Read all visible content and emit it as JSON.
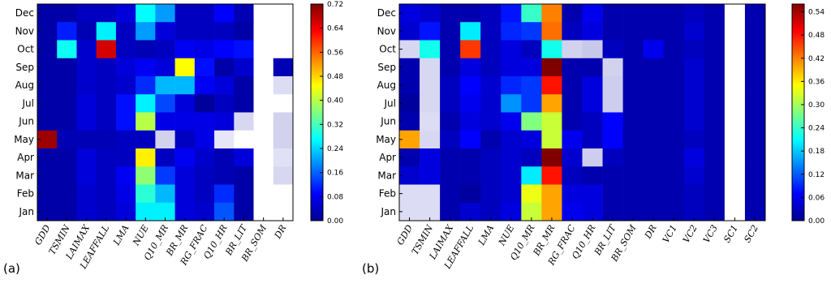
{
  "colormap": [
    "#00008f",
    "#0000ff",
    "#0080ff",
    "#00ffff",
    "#80ff80",
    "#ffff00",
    "#ff8000",
    "#ff0000",
    "#800000"
  ],
  "chart_data": [
    {
      "type": "heatmap",
      "panel_label": "(a)",
      "rows": [
        "Dec",
        "Nov",
        "Oct",
        "Sep",
        "Aug",
        "Jul",
        "Jun",
        "May",
        "Apr",
        "Mar",
        "Feb",
        "Jan"
      ],
      "cols": [
        "GDD",
        "TSMIN",
        "LAIMAX",
        "LEAFFALL",
        "LMA",
        "NUE",
        "Q10_MR",
        "BR_MR",
        "RG_FRAC",
        "Q10_HR",
        "BR_LIT",
        "BR_SOM",
        "DR"
      ],
      "clim": [
        0,
        0.72
      ],
      "colorbar_ticks": [
        "0.00",
        "0.08",
        "0.16",
        "0.24",
        "0.32",
        "0.40",
        "0.48",
        "0.56",
        "0.64",
        "0.72"
      ],
      "values": [
        [
          0.02,
          0.02,
          0.04,
          0.04,
          0.06,
          0.27,
          0.2,
          0.04,
          0.04,
          0.09,
          0.03,
          null,
          null
        ],
        [
          0.02,
          0.11,
          0.03,
          0.26,
          0.04,
          0.2,
          0.06,
          0.04,
          0.04,
          0.04,
          0.02,
          null,
          null
        ],
        [
          0.02,
          0.28,
          0.05,
          0.66,
          0.04,
          0.03,
          0.04,
          0.08,
          0.07,
          0.09,
          0.1,
          null,
          null
        ],
        [
          0.02,
          0.02,
          0.05,
          0.04,
          0.06,
          0.08,
          0.06,
          0.45,
          0.1,
          0.02,
          0.05,
          null,
          0.03
        ],
        [
          0.02,
          0.02,
          0.05,
          0.04,
          0.05,
          0.12,
          0.22,
          0.22,
          0.08,
          0.06,
          0.02,
          null,
          -0.04
        ],
        [
          0.02,
          0.02,
          0.06,
          0.04,
          0.1,
          0.26,
          0.14,
          0.06,
          0.01,
          0.04,
          0.02,
          null,
          null
        ],
        [
          0.02,
          0.02,
          0.06,
          0.04,
          0.1,
          0.4,
          0.07,
          0.07,
          0.07,
          0.06,
          -0.05,
          null,
          -0.06
        ],
        [
          0.7,
          0.03,
          0.03,
          0.03,
          0.04,
          0.04,
          -0.06,
          0.04,
          0.07,
          -0.02,
          null,
          null,
          -0.06
        ],
        [
          0.02,
          0.02,
          0.06,
          0.04,
          0.04,
          0.46,
          0.04,
          0.08,
          0.05,
          0.03,
          0.06,
          null,
          -0.03
        ],
        [
          0.02,
          0.02,
          0.06,
          0.04,
          0.08,
          0.37,
          0.13,
          0.06,
          0.04,
          0.03,
          0.02,
          null,
          -0.05
        ],
        [
          0.02,
          0.02,
          0.05,
          0.04,
          0.07,
          0.3,
          0.22,
          0.06,
          0.04,
          0.12,
          0.02,
          null,
          null
        ],
        [
          0.02,
          0.02,
          0.05,
          0.04,
          0.06,
          0.26,
          0.26,
          0.06,
          0.05,
          0.15,
          0.02,
          null,
          null
        ]
      ]
    },
    {
      "type": "heatmap",
      "panel_label": "(b)",
      "rows": [
        "Dec",
        "Nov",
        "Oct",
        "Sep",
        "Aug",
        "Jul",
        "Jun",
        "May",
        "Apr",
        "Mar",
        "Feb",
        "Jan"
      ],
      "cols": [
        "GDD",
        "TSMIN",
        "LAIMAX",
        "LEAFFALL",
        "LMA",
        "NUE",
        "Q10_MR",
        "BR_MR",
        "RG_FRAC",
        "Q10_HR",
        "BR_LIT",
        "BR_SOM",
        "DR",
        "VC1",
        "VC2",
        "VC3",
        "SC1",
        "SC2"
      ],
      "clim": [
        0,
        0.56
      ],
      "colorbar_ticks": [
        "0.00",
        "0.06",
        "0.12",
        "0.18",
        "0.24",
        "0.30",
        "0.36",
        "0.42",
        "0.48",
        "0.54"
      ],
      "values": [
        [
          0.05,
          0.04,
          0.02,
          0.02,
          0.03,
          0.08,
          0.24,
          0.42,
          0.02,
          0.06,
          0.02,
          0.02,
          0.02,
          0.02,
          0.03,
          0.02,
          null,
          0.02
        ],
        [
          0.04,
          0.08,
          0.02,
          0.2,
          0.03,
          0.09,
          0.1,
          0.43,
          0.03,
          0.05,
          0.02,
          0.02,
          0.02,
          0.02,
          0.04,
          0.02,
          null,
          0.02
        ],
        [
          -0.05,
          0.22,
          0.02,
          0.46,
          0.03,
          0.05,
          0.03,
          0.22,
          -0.06,
          -0.08,
          0.03,
          0.02,
          0.06,
          0.02,
          0.03,
          0.02,
          null,
          0.02
        ],
        [
          0.02,
          -0.05,
          0.02,
          0.05,
          0.03,
          0.05,
          0.05,
          0.56,
          0.02,
          0.02,
          -0.06,
          0.02,
          0.02,
          0.02,
          0.04,
          0.02,
          null,
          0.02
        ],
        [
          0.02,
          -0.05,
          0.03,
          0.07,
          0.04,
          0.09,
          0.1,
          0.48,
          0.02,
          0.05,
          -0.07,
          0.02,
          0.02,
          0.02,
          0.04,
          0.02,
          null,
          0.02
        ],
        [
          0.01,
          -0.05,
          0.03,
          0.06,
          0.04,
          0.15,
          0.1,
          0.4,
          0.02,
          0.05,
          -0.07,
          0.02,
          0.02,
          0.02,
          0.04,
          0.02,
          null,
          0.02
        ],
        [
          0.02,
          -0.04,
          0.02,
          0.05,
          0.04,
          0.06,
          0.28,
          0.32,
          0.02,
          0.03,
          0.07,
          0.02,
          0.02,
          0.02,
          0.04,
          0.02,
          null,
          0.02
        ],
        [
          0.4,
          -0.05,
          0.03,
          0.07,
          0.02,
          0.04,
          0.05,
          0.32,
          0.06,
          0.03,
          0.07,
          0.02,
          0.02,
          0.02,
          0.03,
          0.02,
          null,
          0.02
        ],
        [
          0.02,
          0.05,
          0.02,
          0.02,
          0.03,
          0.04,
          0.03,
          0.56,
          0.04,
          -0.07,
          0.03,
          0.02,
          0.02,
          0.02,
          0.05,
          0.02,
          null,
          0.02
        ],
        [
          0.04,
          0.05,
          0.02,
          0.02,
          0.03,
          0.04,
          0.2,
          0.48,
          0.03,
          0.02,
          0.02,
          0.02,
          0.02,
          0.02,
          0.04,
          0.02,
          null,
          0.02
        ],
        [
          -0.04,
          -0.04,
          0.02,
          0.01,
          0.03,
          0.04,
          0.34,
          0.4,
          0.05,
          0.05,
          0.02,
          0.02,
          0.02,
          0.02,
          0.03,
          0.02,
          null,
          0.02
        ],
        [
          -0.04,
          -0.04,
          0.02,
          0.04,
          0.03,
          0.05,
          0.32,
          0.4,
          0.06,
          0.05,
          0.02,
          0.02,
          0.02,
          0.02,
          0.03,
          0.02,
          null,
          0.02
        ]
      ]
    }
  ]
}
